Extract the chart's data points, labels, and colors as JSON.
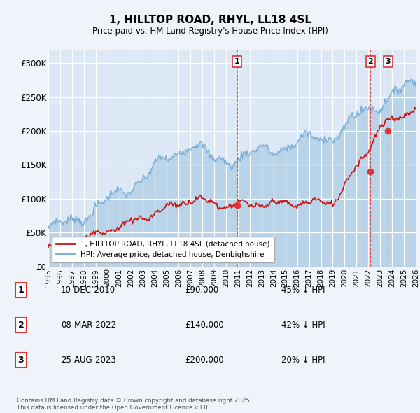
{
  "title": "1, HILLTOP ROAD, RHYL, LL18 4SL",
  "subtitle": "Price paid vs. HM Land Registry's House Price Index (HPI)",
  "hpi_label": "HPI: Average price, detached house, Denbighshire",
  "property_label": "1, HILLTOP ROAD, RHYL, LL18 4SL (detached house)",
  "hpi_color": "#7aadd4",
  "hpi_fill": "#c8ddf0",
  "property_color": "#cc1111",
  "vline_color": "#dd3333",
  "background_color": "#f0f4fa",
  "plot_bg": "#dce8f5",
  "grid_color": "#ffffff",
  "ylim": [
    0,
    320000
  ],
  "yticks": [
    0,
    50000,
    100000,
    150000,
    200000,
    250000,
    300000
  ],
  "ytick_labels": [
    "£0",
    "£50K",
    "£100K",
    "£150K",
    "£200K",
    "£250K",
    "£300K"
  ],
  "xstart": 1995,
  "xend": 2026,
  "transactions": [
    {
      "label": "1",
      "date_str": "10-DEC-2010",
      "year": 2010.92,
      "price": 90000,
      "pct": "45% ↓ HPI"
    },
    {
      "label": "2",
      "date_str": "08-MAR-2022",
      "year": 2022.19,
      "price": 140000,
      "pct": "42% ↓ HPI"
    },
    {
      "label": "3",
      "date_str": "25-AUG-2023",
      "year": 2023.65,
      "price": 200000,
      "pct": "20% ↓ HPI"
    }
  ],
  "footer": "Contains HM Land Registry data © Crown copyright and database right 2025.\nThis data is licensed under the Open Government Licence v3.0."
}
